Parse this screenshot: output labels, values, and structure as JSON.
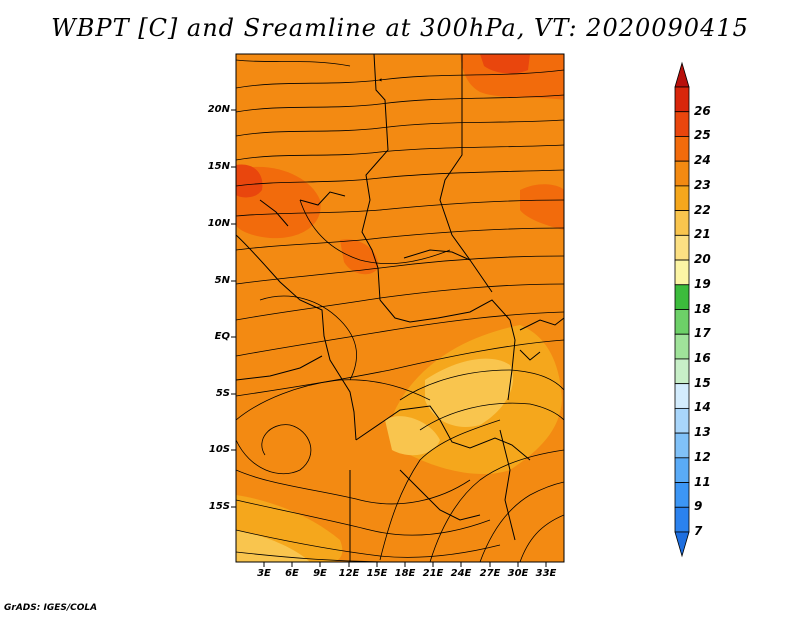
{
  "title": "WBPT [C] and Sreamline at 300hPa, VT: 2020090415",
  "credit": "GrADS: IGES/COLA",
  "map": {
    "lat_labels": [
      "20N",
      "15N",
      "10N",
      "5N",
      "EQ",
      "5S",
      "10S",
      "15S"
    ],
    "lon_labels": [
      "3E",
      "6E",
      "9E",
      "12E",
      "15E",
      "18E",
      "21E",
      "24E",
      "27E",
      "30E",
      "33E"
    ],
    "field": "Wet-bulb potential temperature [C] at 300hPa",
    "overlay": "Streamlines at 300hPa"
  },
  "colorbar": {
    "levels": [
      "7",
      "9",
      "11",
      "12",
      "13",
      "14",
      "15",
      "16",
      "17",
      "18",
      "19",
      "20",
      "21",
      "22",
      "23",
      "24",
      "25",
      "26"
    ],
    "colors": [
      "#1e6fe0",
      "#2b82ee",
      "#3c96f5",
      "#5aabf7",
      "#80c1f8",
      "#a9d6fb",
      "#d3ecfd",
      "#c8efc8",
      "#a0e39a",
      "#6dd068",
      "#3cbc3c",
      "#fcf5a5",
      "#fce083",
      "#f9c54e",
      "#f5a71c",
      "#f38a12",
      "#f26b0c",
      "#e9460d",
      "#d8260b",
      "#b8100b"
    ]
  }
}
